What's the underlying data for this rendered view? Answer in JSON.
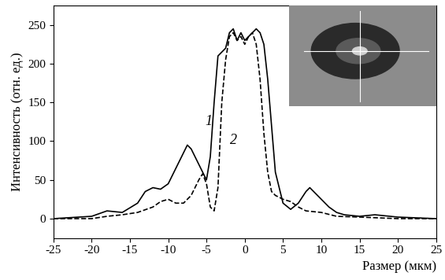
{
  "chart_data": {
    "type": "line",
    "x_label": "Размер (мкм)",
    "y_label": "Интенсивность (отн. ед.)",
    "xlim": [
      -25,
      25
    ],
    "xticks": [
      -25,
      -20,
      -15,
      -10,
      -5,
      0,
      5,
      10,
      15,
      20,
      25
    ],
    "ylim": [
      -25,
      275
    ],
    "yticks": [
      0,
      50,
      100,
      150,
      200,
      250
    ],
    "grid": false,
    "series": [
      {
        "name": "1",
        "color": "#000000",
        "line_style": "solid",
        "x": [
          -25,
          -20,
          -18,
          -16,
          -14,
          -13,
          -12,
          -11,
          -10,
          -9,
          -8,
          -7.5,
          -7,
          -6,
          -5,
          -4.5,
          -4,
          -3.5,
          -3,
          -2.5,
          -2,
          -1.5,
          -1,
          -0.5,
          0,
          0.5,
          1,
          1.5,
          2,
          2.5,
          3,
          3.5,
          4,
          5,
          6,
          7,
          8,
          8.5,
          9,
          10,
          11,
          12,
          13,
          15,
          17,
          20,
          25
        ],
        "values": [
          0,
          3,
          10,
          8,
          20,
          35,
          40,
          38,
          45,
          65,
          85,
          95,
          90,
          70,
          50,
          80,
          150,
          210,
          215,
          220,
          240,
          245,
          230,
          240,
          230,
          235,
          240,
          245,
          240,
          225,
          180,
          120,
          60,
          20,
          12,
          20,
          35,
          40,
          35,
          25,
          15,
          8,
          5,
          3,
          5,
          2,
          0
        ]
      },
      {
        "name": "2",
        "color": "#000000",
        "line_style": "dashed",
        "x": [
          -25,
          -20,
          -18,
          -16,
          -14,
          -12,
          -11,
          -10,
          -9,
          -8,
          -7,
          -6,
          -5.5,
          -5,
          -4.5,
          -4,
          -3.5,
          -3,
          -2.5,
          -2,
          -1.5,
          -1,
          -0.5,
          0,
          0.5,
          1,
          1.5,
          2,
          2.5,
          3,
          3.5,
          4,
          5,
          6,
          7,
          8,
          10,
          12,
          15,
          20,
          25
        ],
        "values": [
          0,
          0,
          3,
          5,
          8,
          15,
          22,
          25,
          20,
          20,
          30,
          50,
          58,
          45,
          15,
          10,
          40,
          150,
          205,
          235,
          240,
          230,
          235,
          225,
          235,
          240,
          225,
          180,
          110,
          60,
          35,
          30,
          25,
          22,
          15,
          10,
          8,
          3,
          2,
          0,
          0
        ]
      }
    ]
  }
}
